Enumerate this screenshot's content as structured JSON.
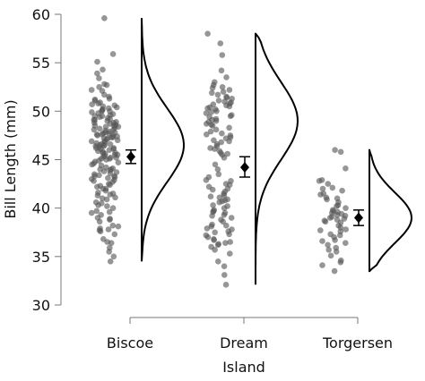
{
  "chart_data": {
    "type": "raincloud",
    "xlabel": "Island",
    "ylabel": "Bill Length (mm)",
    "ylim": [
      30,
      60
    ],
    "yticks": [
      30,
      35,
      40,
      45,
      50,
      55,
      60
    ],
    "categories": [
      "Biscoe",
      "Dream",
      "Torgersen"
    ],
    "groups": [
      {
        "name": "Biscoe",
        "mean": 45.3,
        "ci_low": 44.6,
        "ci_high": 46.0,
        "density": {
          "min": 34.5,
          "max": 59.6,
          "peak": 46.5,
          "spread": 3.8
        },
        "points": [
          35.5,
          37.7,
          37.8,
          38.1,
          38.8,
          39.6,
          40.6,
          41.1,
          34.5,
          35.0,
          36.4,
          37.6,
          38.2,
          39.7,
          40.2,
          41.3,
          42.2,
          42.7,
          43.2,
          43.3,
          43.5,
          43.8,
          44.0,
          44.4,
          44.9,
          45.1,
          45.2,
          45.5,
          45.7,
          45.8,
          46.1,
          46.2,
          46.4,
          46.5,
          46.6,
          46.8,
          47.0,
          47.2,
          47.3,
          47.5,
          47.7,
          47.8,
          48.1,
          48.2,
          48.4,
          48.5,
          48.7,
          48.8,
          49.0,
          49.1,
          49.2,
          49.5,
          49.6,
          49.8,
          50.0,
          50.1,
          50.2,
          50.4,
          50.5,
          50.7,
          50.8,
          51.1,
          51.3,
          52.2,
          52.5,
          53.4,
          54.3,
          55.1,
          55.9,
          59.6,
          42.0,
          42.9,
          43.1,
          43.6,
          44.5,
          45.0,
          45.3,
          45.6,
          46.0,
          46.3,
          46.9,
          47.4,
          47.6,
          48.0,
          48.6,
          49.3,
          49.9,
          50.3,
          51.5,
          52.1,
          41.5,
          42.4,
          43.4,
          44.1,
          44.7,
          45.4,
          46.7,
          47.1,
          47.9,
          48.3,
          40.9,
          41.4,
          42.8,
          43.7,
          44.6,
          45.9,
          46.4,
          47.5,
          49.4,
          50.6,
          39.0,
          40.0,
          41.0,
          42.0,
          43.0,
          44.0,
          45.2,
          46.2,
          47.3,
          48.4,
          36.5,
          37.3,
          38.6,
          39.5,
          40.3,
          41.8,
          42.5,
          43.9,
          45.1,
          46.5,
          47.7,
          48.9,
          50.0,
          51.2,
          52.7,
          53.9,
          35.9,
          36.8,
          37.9,
          38.9,
          39.3,
          40.5,
          41.6,
          42.3,
          43.3,
          44.2,
          45.5,
          46.6,
          47.8,
          48.8,
          49.7,
          50.9,
          51.7,
          52.8,
          44.8,
          45.7,
          46.1,
          46.9,
          47.2,
          47.6,
          48.1,
          48.5,
          49.1,
          49.5
        ]
      },
      {
        "name": "Dream",
        "mean": 44.2,
        "ci_low": 43.2,
        "ci_high": 45.3,
        "density": {
          "min": 32.1,
          "max": 58.0,
          "peak": 49.0,
          "spread": 4.0
        },
        "points": [
          32.1,
          33.1,
          34.0,
          35.7,
          36.0,
          36.2,
          36.5,
          36.8,
          37.0,
          37.3,
          37.5,
          37.8,
          38.1,
          38.3,
          38.8,
          39.0,
          39.2,
          39.5,
          39.7,
          40.2,
          40.3,
          40.6,
          40.8,
          41.1,
          41.3,
          41.5,
          41.9,
          42.2,
          42.5,
          42.9,
          43.2,
          43.5,
          44.0,
          44.5,
          45.2,
          45.5,
          45.7,
          46.1,
          46.4,
          46.6,
          46.8,
          47.0,
          47.3,
          47.5,
          47.7,
          48.1,
          48.3,
          48.5,
          48.7,
          49.0,
          49.2,
          49.5,
          49.6,
          49.8,
          50.0,
          50.2,
          50.4,
          50.5,
          50.7,
          50.9,
          51.0,
          51.3,
          51.5,
          51.7,
          52.0,
          52.2,
          52.7,
          53.5,
          54.2,
          55.8,
          57.0,
          58.0,
          35.3,
          36.4,
          37.2,
          38.6,
          39.6,
          40.9,
          41.7,
          42.8,
          45.9,
          46.9,
          47.9,
          48.9,
          49.9,
          50.8,
          51.4,
          52.4,
          36.7,
          37.6,
          38.2,
          39.3,
          40.0,
          41.2,
          42.0,
          45.6,
          47.2,
          48.6,
          49.4,
          50.3,
          51.9,
          53.0,
          34.5,
          36.3,
          37.9,
          39.8,
          40.7,
          42.4,
          46.2,
          47.6,
          49.1,
          50.6,
          51.1,
          52.5
        ]
      },
      {
        "name": "Torgersen",
        "mean": 39.0,
        "ci_low": 38.2,
        "ci_high": 39.8,
        "density": {
          "min": 33.5,
          "max": 46.0,
          "peak": 39.0,
          "spread": 2.6
        },
        "points": [
          33.5,
          34.1,
          34.6,
          35.1,
          35.5,
          35.9,
          36.2,
          36.6,
          36.7,
          37.0,
          37.2,
          37.3,
          37.7,
          37.8,
          38.0,
          38.5,
          38.6,
          38.7,
          38.8,
          38.9,
          39.0,
          39.1,
          39.2,
          39.3,
          39.5,
          39.6,
          39.7,
          39.8,
          40.3,
          40.6,
          40.9,
          41.1,
          41.4,
          41.5,
          41.8,
          42.1,
          42.5,
          42.8,
          42.9,
          44.1,
          45.8,
          46.0,
          36.4,
          37.6,
          38.2,
          39.4,
          40.0,
          40.2,
          41.0,
          42.0,
          34.4,
          35.7
        ]
      }
    ]
  }
}
